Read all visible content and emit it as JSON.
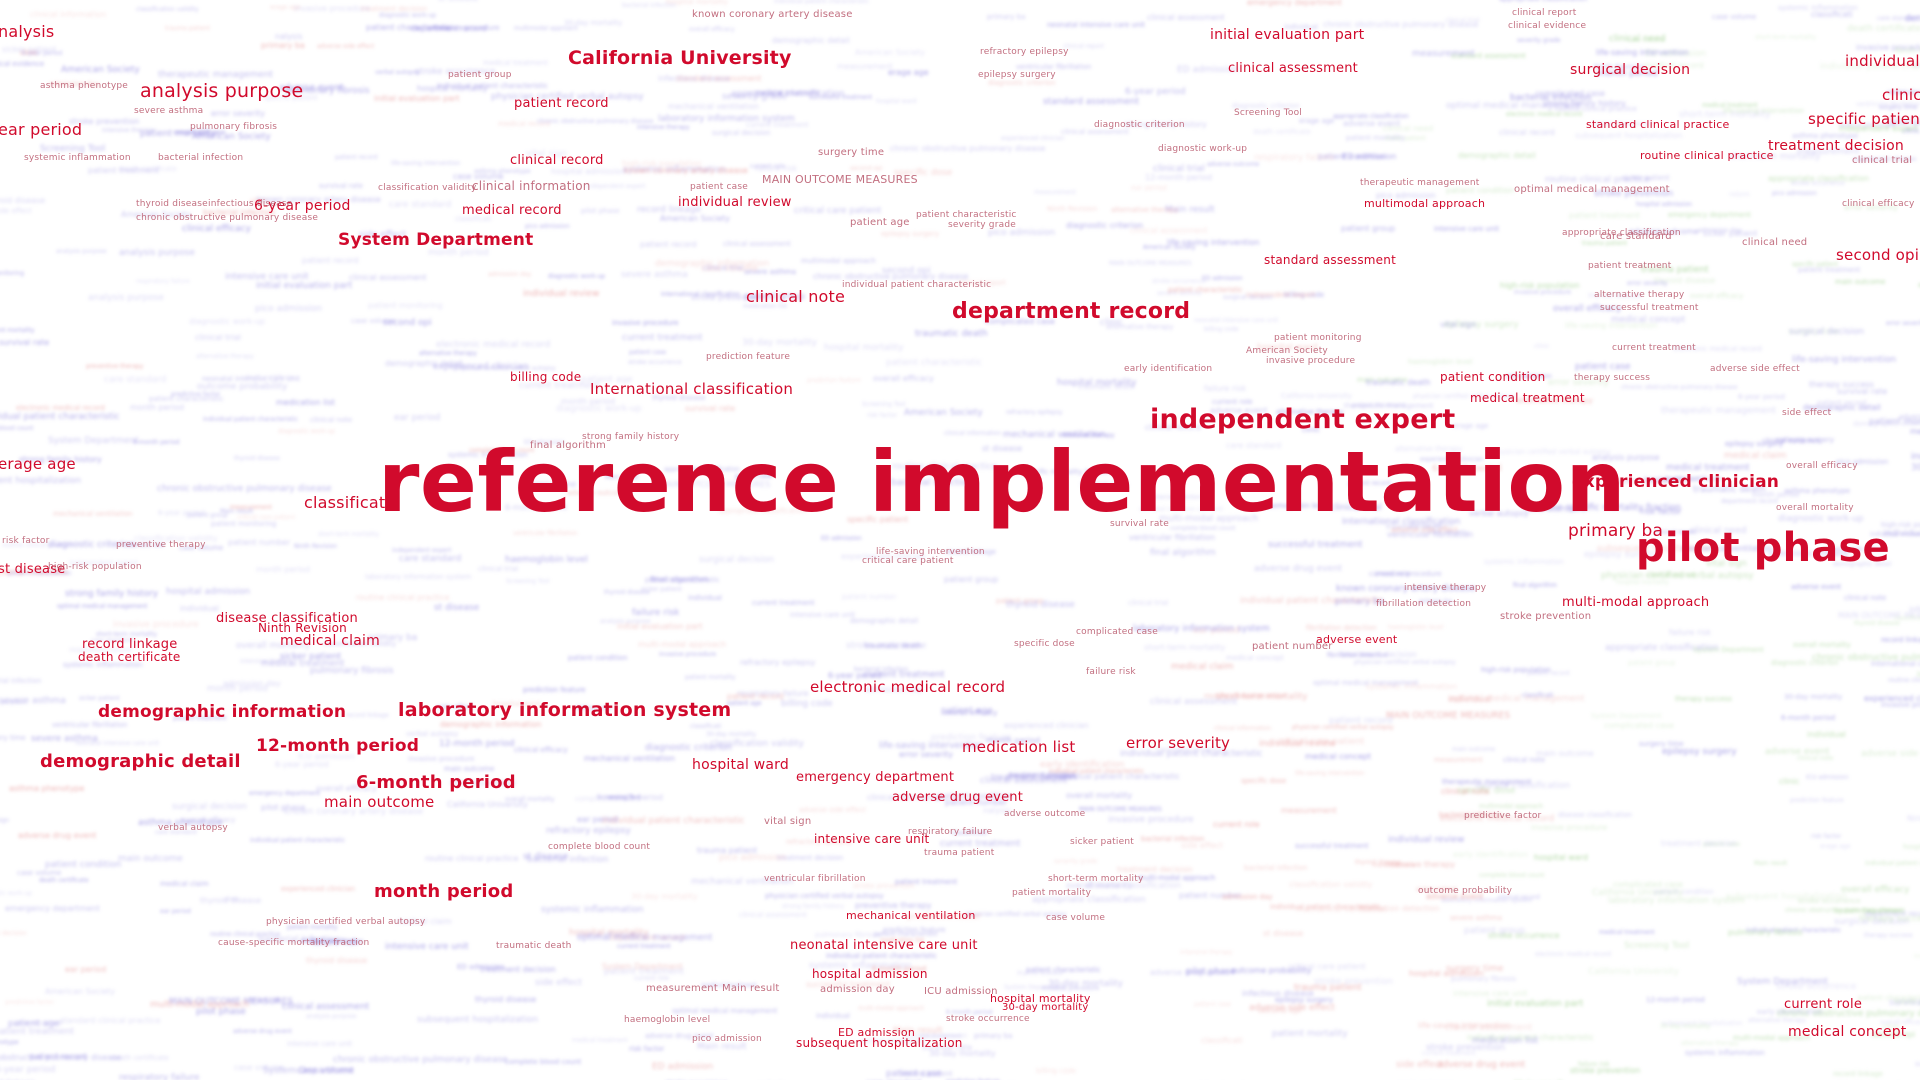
{
  "main_term": "reference implementation",
  "colors": {
    "highlight": "#d10a2c",
    "cluster_blue": "#6a5fd6",
    "cluster_red": "#e07a7a",
    "cluster_green": "#7fbf6a",
    "background": "#ffffff"
  },
  "terms": [
    {
      "id": "t001",
      "text": "nalysis"
    },
    {
      "id": "t002",
      "text": "analysis purpose"
    },
    {
      "id": "t003",
      "text": "ear period"
    },
    {
      "id": "t004",
      "text": "California University"
    },
    {
      "id": "t005",
      "text": "known coronary artery disease"
    },
    {
      "id": "t006",
      "text": "initial evaluation part"
    },
    {
      "id": "t007",
      "text": "clinical assessment"
    },
    {
      "id": "t008",
      "text": "surgical decision"
    },
    {
      "id": "t009",
      "text": "individual"
    },
    {
      "id": "t010",
      "text": "clinic"
    },
    {
      "id": "t011",
      "text": "specific patient"
    },
    {
      "id": "t012",
      "text": "treatment decision"
    },
    {
      "id": "t013",
      "text": "patient record"
    },
    {
      "id": "t014",
      "text": "clinical record"
    },
    {
      "id": "t015",
      "text": "clinical information"
    },
    {
      "id": "t016",
      "text": "medical record"
    },
    {
      "id": "t017",
      "text": "6-year period"
    },
    {
      "id": "t018",
      "text": "System Department"
    },
    {
      "id": "t019",
      "text": "individual review"
    },
    {
      "id": "t020",
      "text": "MAIN OUTCOME MEASURES"
    },
    {
      "id": "t021",
      "text": "surgery time"
    },
    {
      "id": "t022",
      "text": "multimodal approach"
    },
    {
      "id": "t023",
      "text": "standard assessment"
    },
    {
      "id": "t024",
      "text": "standard clinical practice"
    },
    {
      "id": "t025",
      "text": "routine clinical practice"
    },
    {
      "id": "t026",
      "text": "second opi"
    },
    {
      "id": "t027",
      "text": "clinical note"
    },
    {
      "id": "t028",
      "text": "department record"
    },
    {
      "id": "t029",
      "text": "billing code"
    },
    {
      "id": "t030",
      "text": "International classification"
    },
    {
      "id": "t031",
      "text": "independent expert"
    },
    {
      "id": "t032",
      "text": "patient condition"
    },
    {
      "id": "t033",
      "text": "medical treatment"
    },
    {
      "id": "t034",
      "text": "erage age"
    },
    {
      "id": "t035",
      "text": "classificati"
    },
    {
      "id": "t036",
      "text": "experienced clinician"
    },
    {
      "id": "t037",
      "text": "primary ba"
    },
    {
      "id": "t038",
      "text": "pilot phase"
    },
    {
      "id": "t039",
      "text": "st disease"
    },
    {
      "id": "t040",
      "text": "disease classification"
    },
    {
      "id": "t041",
      "text": "Ninth Revision"
    },
    {
      "id": "t042",
      "text": "medical claim"
    },
    {
      "id": "t043",
      "text": "record linkage"
    },
    {
      "id": "t044",
      "text": "death certificate"
    },
    {
      "id": "t045",
      "text": "multi-modal approach"
    },
    {
      "id": "t046",
      "text": "stroke prevention"
    },
    {
      "id": "t047",
      "text": "adverse event"
    },
    {
      "id": "t048",
      "text": "patient number"
    },
    {
      "id": "t049",
      "text": "electronic medical record"
    },
    {
      "id": "t050",
      "text": "demographic information"
    },
    {
      "id": "t051",
      "text": "laboratory information system"
    },
    {
      "id": "t052",
      "text": "demographic detail"
    },
    {
      "id": "t053",
      "text": "12-month period"
    },
    {
      "id": "t054",
      "text": "6-month period"
    },
    {
      "id": "t055",
      "text": "main outcome"
    },
    {
      "id": "t056",
      "text": "medication list"
    },
    {
      "id": "t057",
      "text": "error severity"
    },
    {
      "id": "t058",
      "text": "hospital ward"
    },
    {
      "id": "t059",
      "text": "emergency department"
    },
    {
      "id": "t060",
      "text": "adverse drug event"
    },
    {
      "id": "t061",
      "text": "intensive care unit"
    },
    {
      "id": "t062",
      "text": "month period"
    },
    {
      "id": "t063",
      "text": "mechanical ventilation"
    },
    {
      "id": "t064",
      "text": "neonatal intensive care unit"
    },
    {
      "id": "t065",
      "text": "hospital admission"
    },
    {
      "id": "t066",
      "text": "hospital mortality"
    },
    {
      "id": "t067",
      "text": "30-day mortality"
    },
    {
      "id": "t068",
      "text": "subsequent hospitalization"
    },
    {
      "id": "t069",
      "text": "ED admission"
    },
    {
      "id": "t070",
      "text": "current role"
    },
    {
      "id": "t071",
      "text": "medical concept"
    },
    {
      "id": "t072",
      "text": "Screening Tool"
    },
    {
      "id": "t073",
      "text": "therapeutic management"
    },
    {
      "id": "t074",
      "text": "optimal medical management"
    },
    {
      "id": "t075",
      "text": "patient age"
    },
    {
      "id": "t076",
      "text": "individual patient characteristic"
    },
    {
      "id": "t077",
      "text": "American Society"
    },
    {
      "id": "t078",
      "text": "invasive procedure"
    },
    {
      "id": "t079",
      "text": "final algorithm"
    },
    {
      "id": "t080",
      "text": "clinical trial"
    },
    {
      "id": "t081",
      "text": "care standard"
    },
    {
      "id": "t082",
      "text": "clinical need"
    },
    {
      "id": "t083",
      "text": "refractory epilepsy"
    },
    {
      "id": "t084",
      "text": "epilepsy surgery"
    },
    {
      "id": "t085",
      "text": "clinical report"
    },
    {
      "id": "t086",
      "text": "clinical evidence"
    },
    {
      "id": "t087",
      "text": "patient group"
    },
    {
      "id": "t088",
      "text": "classification validity"
    },
    {
      "id": "t089",
      "text": "asthma phenotype"
    },
    {
      "id": "t090",
      "text": "systemic inflammation"
    },
    {
      "id": "t091",
      "text": "alternative therapy"
    },
    {
      "id": "t092",
      "text": "successful treatment"
    },
    {
      "id": "t093",
      "text": "current treatment"
    },
    {
      "id": "t094",
      "text": "therapy success"
    },
    {
      "id": "t095",
      "text": "adverse side effect"
    },
    {
      "id": "t096",
      "text": "side effect"
    },
    {
      "id": "t097",
      "text": "overall efficacy"
    },
    {
      "id": "t098",
      "text": "intensive therapy"
    },
    {
      "id": "t099",
      "text": "fibrillation detection"
    },
    {
      "id": "t100",
      "text": "ventricular fibrillation"
    },
    {
      "id": "t101",
      "text": "trauma patient"
    },
    {
      "id": "t102",
      "text": "sicker patient"
    },
    {
      "id": "t103",
      "text": "respiratory failure"
    },
    {
      "id": "t104",
      "text": "vital sign"
    },
    {
      "id": "t105",
      "text": "complete blood count"
    },
    {
      "id": "t106",
      "text": "haemoglobin level"
    },
    {
      "id": "t107",
      "text": "pico admission"
    },
    {
      "id": "t108",
      "text": "case volume"
    },
    {
      "id": "t109",
      "text": "short-term mortality"
    },
    {
      "id": "t110",
      "text": "patient mortality"
    },
    {
      "id": "t111",
      "text": "outcome probability"
    },
    {
      "id": "t112",
      "text": "verbal autopsy"
    },
    {
      "id": "t113",
      "text": "physician certified verbal autopsy"
    },
    {
      "id": "t114",
      "text": "cause-specific mortality fraction"
    },
    {
      "id": "t115",
      "text": "traumatic death"
    },
    {
      "id": "t116",
      "text": "stroke occurrence"
    },
    {
      "id": "t117",
      "text": "Main result"
    },
    {
      "id": "t118",
      "text": "measurement"
    },
    {
      "id": "t119",
      "text": "admission day"
    },
    {
      "id": "t120",
      "text": "ICU admission"
    },
    {
      "id": "t121",
      "text": "complicated case"
    },
    {
      "id": "t122",
      "text": "failure risk"
    },
    {
      "id": "t123",
      "text": "survival rate"
    },
    {
      "id": "t124",
      "text": "life-saving intervention"
    },
    {
      "id": "t125",
      "text": "critical care patient"
    },
    {
      "id": "t126",
      "text": "overall mortality"
    },
    {
      "id": "t127",
      "text": "high-risk population"
    },
    {
      "id": "t128",
      "text": "preventive therapy"
    },
    {
      "id": "t129",
      "text": "risk factor"
    },
    {
      "id": "t130",
      "text": "strong family history"
    },
    {
      "id": "t131",
      "text": "early identification"
    },
    {
      "id": "t132",
      "text": "patient monitoring"
    },
    {
      "id": "t133",
      "text": "patient case"
    },
    {
      "id": "t134",
      "text": "patient characteristic"
    },
    {
      "id": "t135",
      "text": "severity grade"
    },
    {
      "id": "t136",
      "text": "diagnostic criterion"
    },
    {
      "id": "t137",
      "text": "prediction feature"
    },
    {
      "id": "t138",
      "text": "diagnostic work-up"
    },
    {
      "id": "t139",
      "text": "appropriate classification"
    },
    {
      "id": "t140",
      "text": "patient treatment"
    },
    {
      "id": "t141",
      "text": "bacterial infection"
    },
    {
      "id": "t142",
      "text": "pulmonary fibrosis"
    },
    {
      "id": "t143",
      "text": "severe asthma"
    },
    {
      "id": "t144",
      "text": "chronic obstructive pulmonary disease"
    },
    {
      "id": "t145",
      "text": "thyroid disease"
    },
    {
      "id": "t146",
      "text": "infectious disease"
    },
    {
      "id": "t147",
      "text": "specific dose"
    },
    {
      "id": "t148",
      "text": "clinical efficacy"
    },
    {
      "id": "t149",
      "text": "adverse outcome"
    },
    {
      "id": "t150",
      "text": "predictive factor"
    }
  ]
}
